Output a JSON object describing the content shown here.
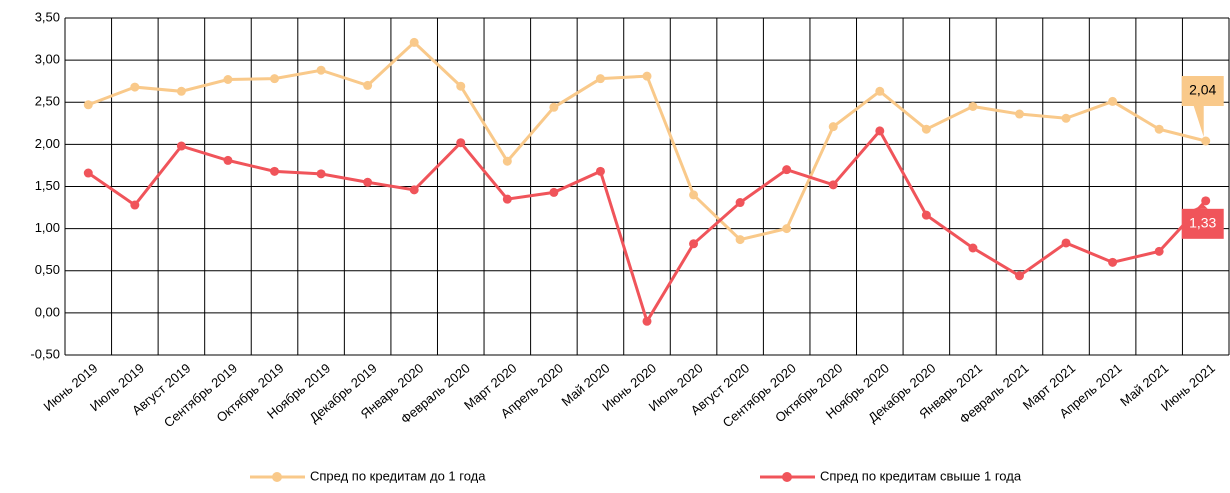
{
  "chart_data": {
    "type": "line",
    "categories": [
      "Июнь 2019",
      "Июль 2019",
      "Август 2019",
      "Сентябрь 2019",
      "Октябрь 2019",
      "Ноябрь 2019",
      "Декабрь 2019",
      "Январь 2020",
      "Февраль 2020",
      "Март 2020",
      "Апрель 2020",
      "Май 2020",
      "Июнь 2020",
      "Июль 2020",
      "Август 2020",
      "Сентябрь 2020",
      "Октябрь 2020",
      "Ноябрь 2020",
      "Декабрь 2020",
      "Январь 2021",
      "Февраль 2021",
      "Март 2021",
      "Апрель 2021",
      "Май 2021",
      "Июнь 2021"
    ],
    "series": [
      {
        "name": "Спред по кредитам до 1 года",
        "color": "#f9c98a",
        "values": [
          2.47,
          2.68,
          2.63,
          2.77,
          2.78,
          2.88,
          2.7,
          3.21,
          2.69,
          1.8,
          2.44,
          2.78,
          2.81,
          1.4,
          0.87,
          1.0,
          2.21,
          2.63,
          2.18,
          2.45,
          2.36,
          2.31,
          2.51,
          2.18,
          2.04
        ],
        "value_labels": [
          null,
          null,
          null,
          null,
          null,
          null,
          null,
          null,
          null,
          null,
          null,
          null,
          null,
          null,
          null,
          null,
          null,
          null,
          null,
          null,
          null,
          null,
          null,
          null,
          "2,04"
        ]
      },
      {
        "name": "Спред по кредитам свыше 1 года",
        "color": "#f0545a",
        "values": [
          1.66,
          1.28,
          1.98,
          1.81,
          1.68,
          1.65,
          1.55,
          1.46,
          2.02,
          1.35,
          1.43,
          1.68,
          -0.1,
          0.82,
          1.31,
          1.7,
          1.52,
          2.16,
          1.16,
          0.77,
          0.44,
          0.83,
          0.6,
          0.73,
          1.33
        ],
        "value_labels": [
          null,
          null,
          null,
          null,
          null,
          null,
          null,
          null,
          null,
          null,
          null,
          null,
          null,
          null,
          null,
          null,
          null,
          null,
          null,
          null,
          null,
          null,
          null,
          null,
          "1,33"
        ]
      }
    ],
    "ylim": [
      -0.5,
      3.5
    ],
    "yticks": [
      {
        "value": -0.5,
        "label": "-0,50"
      },
      {
        "value": 0,
        "label": "0,00"
      },
      {
        "value": 0.5,
        "label": "0,50"
      },
      {
        "value": 1,
        "label": "1,00"
      },
      {
        "value": 1.5,
        "label": "1,50"
      },
      {
        "value": 2,
        "label": "2,00"
      },
      {
        "value": 2.5,
        "label": "2,50"
      },
      {
        "value": 3,
        "label": "3,00"
      },
      {
        "value": 3.5,
        "label": "3,50"
      }
    ],
    "grid": true
  }
}
